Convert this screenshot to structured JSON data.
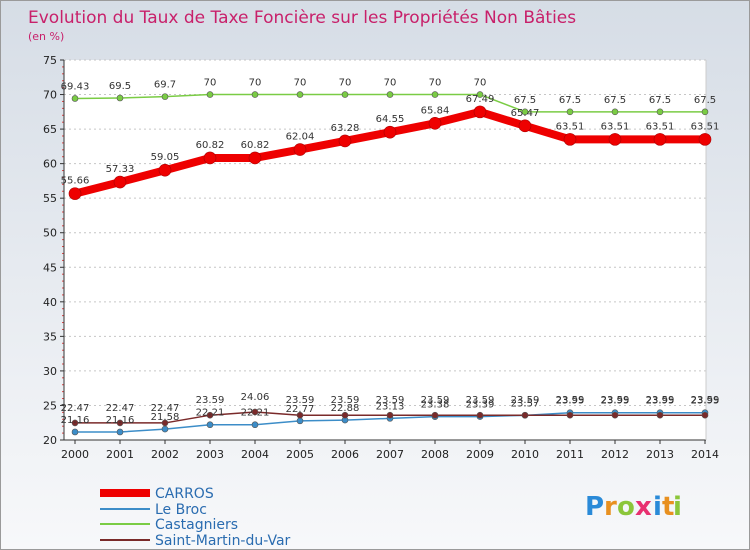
{
  "chart_data": {
    "type": "line",
    "title": "Evolution du Taux de Taxe Foncière sur les Propriétés Non Bâties",
    "subtitle": "(en %)",
    "xlabel": "",
    "ylabel": "",
    "ylim": [
      20,
      75
    ],
    "yticks": [
      20,
      25,
      30,
      35,
      40,
      45,
      50,
      55,
      60,
      65,
      70,
      75
    ],
    "categories": [
      "2000",
      "2001",
      "2002",
      "2003",
      "2004",
      "2005",
      "2006",
      "2007",
      "2008",
      "2009",
      "2010",
      "2011",
      "2012",
      "2013",
      "2014"
    ],
    "series": [
      {
        "name": "CARROS",
        "color": "#ee0000",
        "values": [
          55.66,
          57.33,
          59.05,
          60.82,
          60.82,
          62.04,
          63.28,
          64.55,
          65.84,
          67.49,
          65.47,
          63.51,
          63.51,
          63.51,
          63.51
        ],
        "labels": [
          "55.66",
          "57.33",
          "59.05",
          "60.82",
          "60.82",
          "62.04",
          "63.28",
          "64.55",
          "65.84",
          "67.49",
          "65.47",
          "63.51",
          "63.51",
          "63.51",
          "63.51"
        ]
      },
      {
        "name": "Le Broc",
        "color": "#3c8dc8",
        "values": [
          21.16,
          21.16,
          21.58,
          22.21,
          22.21,
          22.77,
          22.88,
          23.13,
          23.38,
          23.39,
          23.57,
          23.95,
          23.95,
          23.95,
          23.95
        ],
        "labels": [
          "21.16",
          "21.16",
          "21.58",
          "22.21",
          "22.21",
          "22.77",
          "22.88",
          "23.13",
          "23.38",
          "23.39",
          "23.57",
          "23.95",
          "23.95",
          "23.95",
          "23.95"
        ]
      },
      {
        "name": "Castagniers",
        "color": "#7acc44",
        "values": [
          69.43,
          69.5,
          69.7,
          70,
          70,
          70,
          70,
          70,
          70,
          70,
          67.5,
          67.5,
          67.5,
          67.5,
          67.5
        ],
        "labels": [
          "69.43",
          "69.5",
          "69.7",
          "70",
          "70",
          "70",
          "70",
          "70",
          "70",
          "70",
          "67.5",
          "67.5",
          "67.5",
          "67.5",
          "67.5"
        ]
      },
      {
        "name": "Saint-Martin-du-Var",
        "color": "#7a2a2a",
        "values": [
          22.47,
          22.47,
          22.47,
          23.59,
          24.06,
          23.59,
          23.59,
          23.59,
          23.59,
          23.59,
          23.59,
          23.59,
          23.59,
          23.59,
          23.59
        ],
        "labels": [
          "22.47",
          "22.47",
          "22.47",
          "23.59",
          "24.06",
          "23.59",
          "23.59",
          "23.59",
          "23.59",
          "23.59",
          "23.59",
          "23.59",
          "23.59",
          "23.59",
          "23.59"
        ]
      }
    ],
    "legend": [
      "CARROS",
      "Le Broc",
      "Castagniers",
      "Saint-Martin-du-Var"
    ],
    "legend_position": "bottom-left"
  },
  "logo": {
    "text": "Proxiti",
    "letters": [
      "P",
      "r",
      "o",
      "x",
      "i",
      "t",
      "i"
    ]
  }
}
